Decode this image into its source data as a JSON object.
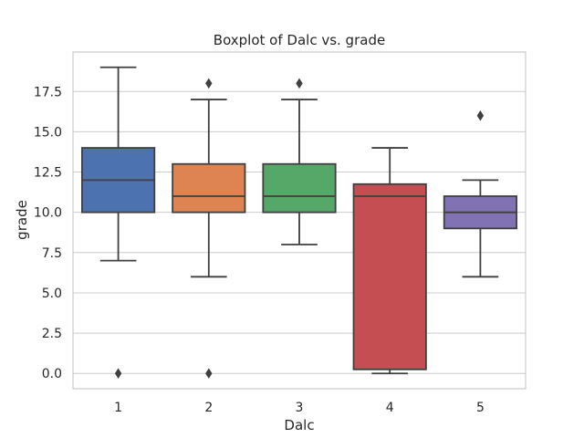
{
  "chart_data": {
    "type": "boxplot",
    "title": "Boxplot of Dalc vs. grade",
    "xlabel": "Dalc",
    "ylabel": "grade",
    "ylim": [
      -0.95,
      19.95
    ],
    "yticks": [
      "0.0",
      "2.5",
      "5.0",
      "7.5",
      "10.0",
      "12.5",
      "15.0",
      "17.5"
    ],
    "ytick_values": [
      0,
      2.5,
      5,
      7.5,
      10,
      12.5,
      15,
      17.5
    ],
    "grid": true,
    "colors": {
      "box_edge": "#3f3f3f",
      "grid": "#cccccc",
      "frame": "#cccccc"
    },
    "categories": [
      "1",
      "2",
      "3",
      "4",
      "5"
    ],
    "boxes": [
      {
        "category": "1",
        "color": "#4c72b0",
        "whisker_low": 7,
        "q1": 10,
        "median": 12,
        "q3": 14,
        "whisker_high": 19,
        "outliers": [
          0
        ]
      },
      {
        "category": "2",
        "color": "#dd8452",
        "whisker_low": 6,
        "q1": 10,
        "median": 11,
        "q3": 13,
        "whisker_high": 17,
        "outliers": [
          0,
          18
        ]
      },
      {
        "category": "3",
        "color": "#55a868",
        "whisker_low": 8,
        "q1": 10,
        "median": 11,
        "q3": 13,
        "whisker_high": 17,
        "outliers": [
          18
        ]
      },
      {
        "category": "4",
        "color": "#c44e52",
        "whisker_low": 0,
        "q1": 0.25,
        "median": 11,
        "q3": 11.75,
        "whisker_high": 14,
        "outliers": []
      },
      {
        "category": "5",
        "color": "#8172b3",
        "whisker_low": 6,
        "q1": 9,
        "median": 10,
        "q3": 11,
        "whisker_high": 12,
        "outliers": [
          16
        ]
      }
    ]
  }
}
